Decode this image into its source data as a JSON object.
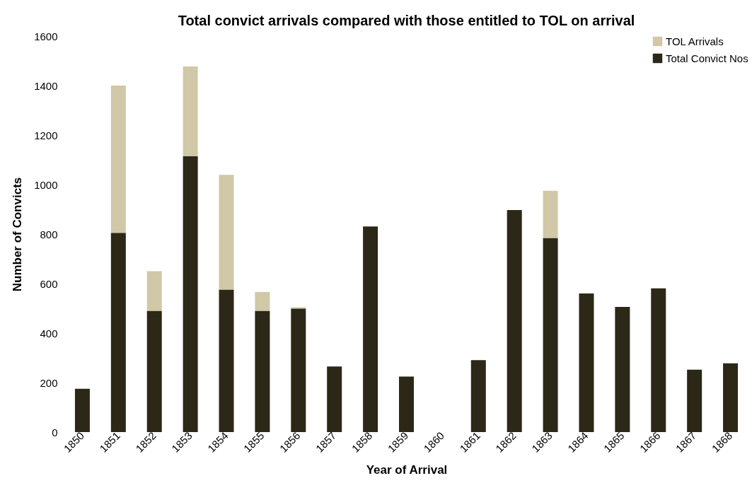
{
  "chart_data": {
    "type": "bar",
    "title": "Total convict arrivals compared with those entitled to TOL on arrival",
    "xlabel": "Year of Arrival",
    "ylabel": "Number of Convicts",
    "categories": [
      "1850",
      "1851",
      "1852",
      "1853",
      "1854",
      "1855",
      "1856",
      "1857",
      "1858",
      "1859",
      "1860",
      "1861",
      "1862",
      "1863",
      "1864",
      "1865",
      "1866",
      "1867",
      "1868"
    ],
    "stacked": true,
    "series": [
      {
        "name": "Total Convict Nos",
        "color": "#2b2817",
        "values": [
          175,
          805,
          490,
          1114,
          576,
          490,
          499,
          265,
          831,
          224,
          null,
          291,
          897,
          784,
          560,
          506,
          581,
          252,
          278
        ]
      },
      {
        "name": "TOL Arrivals",
        "color": "#d0c8a6",
        "values": [
          null,
          595,
          160,
          363,
          463,
          76,
          5,
          null,
          null,
          null,
          null,
          null,
          null,
          191,
          null,
          null,
          null,
          null,
          null
        ]
      }
    ],
    "ylim": [
      0,
      1600
    ],
    "yticks": [
      0,
      200,
      400,
      600,
      800,
      1000,
      1200,
      1400,
      1600
    ],
    "grid": false,
    "legend": "top right"
  }
}
